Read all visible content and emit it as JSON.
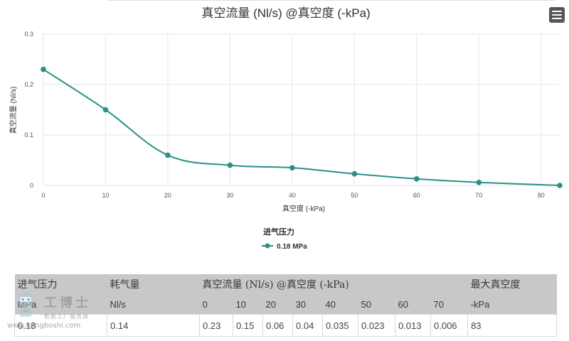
{
  "chart_data": {
    "type": "line",
    "title": "真空流量 (Nl/s) @真空度 (-kPa)",
    "xlabel": "真空度 (-kPa)",
    "ylabel": "真空流量 (Nl/s)",
    "xlim": [
      0,
      83
    ],
    "ylim": [
      0,
      0.3
    ],
    "x_ticks": [
      "0",
      "10",
      "20",
      "30",
      "40",
      "50",
      "60",
      "70",
      "80"
    ],
    "y_ticks": [
      "0",
      "0.1",
      "0.2",
      "0.3"
    ],
    "grid": true,
    "legend_position": "bottom-center",
    "legend_title": "进气压力",
    "series": [
      {
        "name": "0.18 MPa",
        "color": "#2a9088",
        "x": [
          0,
          10,
          20,
          30,
          40,
          50,
          60,
          70,
          83
        ],
        "y": [
          0.23,
          0.15,
          0.06,
          0.04,
          0.035,
          0.023,
          0.013,
          0.006,
          0.0
        ]
      }
    ]
  },
  "menu": {
    "icon": "hamburger-menu-icon"
  },
  "table": {
    "header_row1": [
      "进气压力",
      "耗气量",
      "真空流量 (Nl/s) @真空度 (-kPa)",
      "最大真空度"
    ],
    "header_row2": [
      "MPa",
      "Nl/s",
      "0",
      "10",
      "20",
      "30",
      "40",
      "50",
      "60",
      "70",
      "-kPa"
    ],
    "rows": [
      [
        "0.18",
        "0.14",
        "0.23",
        "0.15",
        "0.06",
        "0.04",
        "0.035",
        "0.023",
        "0.013",
        "0.006",
        "83"
      ]
    ],
    "header_bg": "#c8c8c8"
  },
  "watermark": {
    "brand": "工博士",
    "sub": "智能工厂服务商",
    "url": "www.gongboshi.com"
  }
}
